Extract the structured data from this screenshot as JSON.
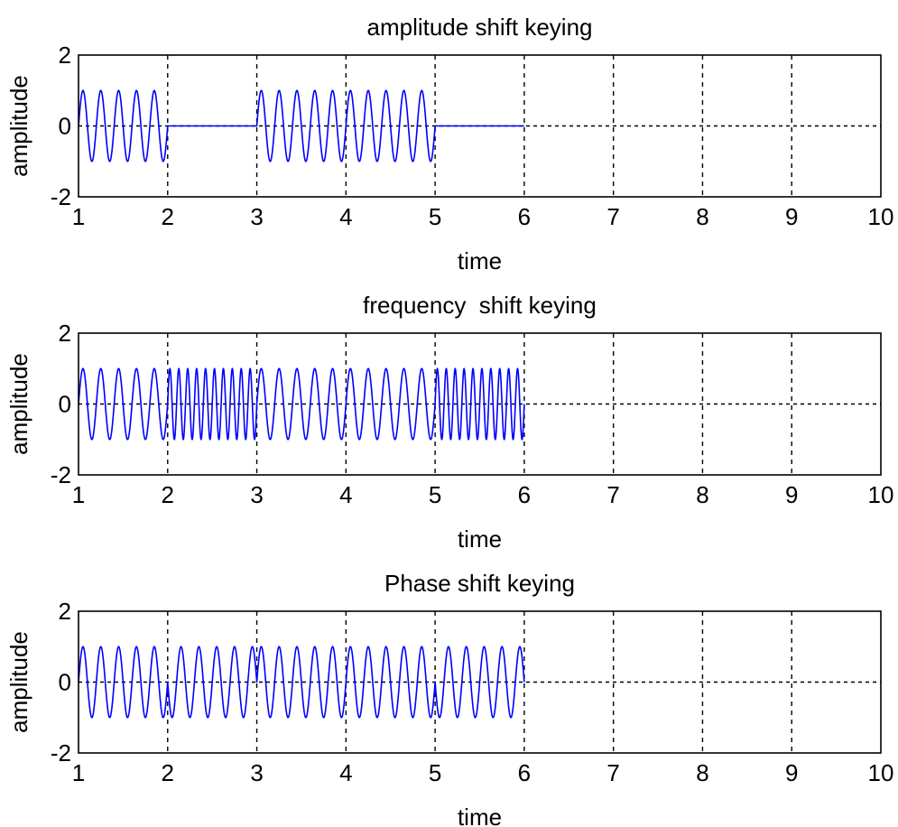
{
  "chart_data": [
    {
      "type": "line",
      "title": "amplitude shift keying",
      "xlabel": "time",
      "ylabel": "amplitude",
      "xlim": [
        1,
        10
      ],
      "ylim": [
        -2,
        2
      ],
      "xticks": [
        "1",
        "2",
        "3",
        "4",
        "5",
        "6",
        "7",
        "8",
        "9",
        "10"
      ],
      "yticks": [
        "-2",
        "0",
        "2"
      ],
      "grid": true,
      "series": [
        {
          "color": "#0000ff",
          "segments": [
            {
              "x_start": 1,
              "x_end": 2,
              "amplitude": 1,
              "cycles": 5,
              "phase": 0
            },
            {
              "x_start": 2,
              "x_end": 3,
              "amplitude": 0,
              "cycles": 0,
              "phase": 0
            },
            {
              "x_start": 3,
              "x_end": 4,
              "amplitude": 1,
              "cycles": 5,
              "phase": 0
            },
            {
              "x_start": 4,
              "x_end": 5,
              "amplitude": 1,
              "cycles": 5,
              "phase": 0
            },
            {
              "x_start": 5,
              "x_end": 6,
              "amplitude": 0,
              "cycles": 0,
              "phase": 0
            }
          ]
        }
      ]
    },
    {
      "type": "line",
      "title": "frequency  shift keying",
      "xlabel": "time",
      "ylabel": "amplitude",
      "xlim": [
        1,
        10
      ],
      "ylim": [
        -2,
        2
      ],
      "xticks": [
        "1",
        "2",
        "3",
        "4",
        "5",
        "6",
        "7",
        "8",
        "9",
        "10"
      ],
      "yticks": [
        "-2",
        "0",
        "2"
      ],
      "grid": true,
      "series": [
        {
          "color": "#0000ff",
          "segments": [
            {
              "x_start": 1,
              "x_end": 2,
              "amplitude": 1,
              "cycles": 5,
              "phase": 0
            },
            {
              "x_start": 2,
              "x_end": 3,
              "amplitude": 1,
              "cycles": 10,
              "phase": 0
            },
            {
              "x_start": 3,
              "x_end": 4,
              "amplitude": 1,
              "cycles": 5,
              "phase": 0
            },
            {
              "x_start": 4,
              "x_end": 5,
              "amplitude": 1,
              "cycles": 5,
              "phase": 0
            },
            {
              "x_start": 5,
              "x_end": 6,
              "amplitude": 1,
              "cycles": 10,
              "phase": 0
            }
          ]
        }
      ]
    },
    {
      "type": "line",
      "title": "Phase shift keying",
      "xlabel": "time",
      "ylabel": "amplitude",
      "xlim": [
        1,
        10
      ],
      "ylim": [
        -2,
        2
      ],
      "xticks": [
        "1",
        "2",
        "3",
        "4",
        "5",
        "6",
        "7",
        "8",
        "9",
        "10"
      ],
      "yticks": [
        "-2",
        "0",
        "2"
      ],
      "grid": true,
      "series": [
        {
          "color": "#0000ff",
          "segments": [
            {
              "x_start": 1,
              "x_end": 2,
              "amplitude": 1,
              "cycles": 5,
              "phase": 0
            },
            {
              "x_start": 2,
              "x_end": 3,
              "amplitude": 1,
              "cycles": 5,
              "phase": 180
            },
            {
              "x_start": 3,
              "x_end": 4,
              "amplitude": 1,
              "cycles": 5,
              "phase": 0
            },
            {
              "x_start": 4,
              "x_end": 5,
              "amplitude": 1,
              "cycles": 5,
              "phase": 0
            },
            {
              "x_start": 5,
              "x_end": 6,
              "amplitude": 1,
              "cycles": 5,
              "phase": 180
            }
          ]
        }
      ]
    }
  ]
}
